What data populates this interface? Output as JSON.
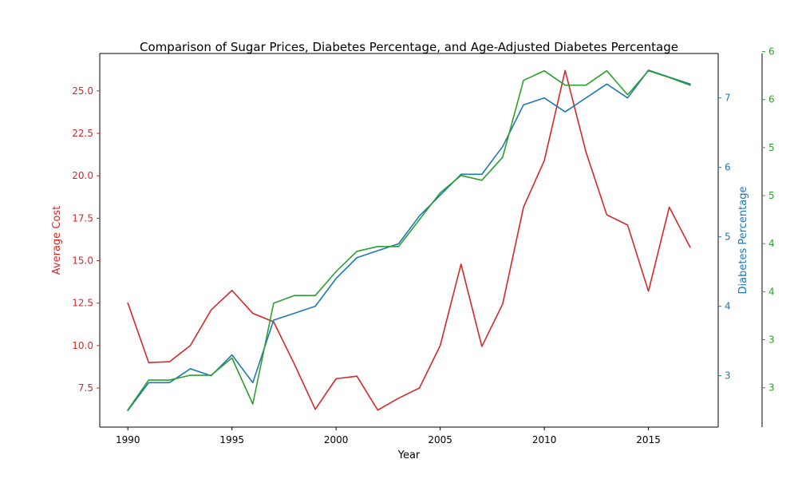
{
  "chart_data": {
    "type": "line",
    "title": "Comparison of Sugar Prices, Diabetes Percentage, and Age-Adjusted Diabetes Percentage",
    "xlabel": "Year",
    "ylabel": "Average Cost",
    "ylabel_right": "Diabetes Percentage",
    "ylabel_right2": "",
    "x": [
      1990,
      1991,
      1992,
      1993,
      1994,
      1995,
      1996,
      1997,
      1998,
      1999,
      2000,
      2001,
      2002,
      2003,
      2004,
      2005,
      2006,
      2007,
      2008,
      2009,
      2010,
      2011,
      2012,
      2013,
      2014,
      2015,
      2016,
      2017
    ],
    "xlim": [
      1988.65,
      2018.35
    ],
    "x_ticks": [
      1990,
      1995,
      2000,
      2005,
      2010,
      2015
    ],
    "x_tick_labels": [
      "1990",
      "1995",
      "2000",
      "2005",
      "2010",
      "2015"
    ],
    "grid": false,
    "legend": "none",
    "axes": [
      {
        "id": "left",
        "color": "#d62728",
        "ylim": [
          5.2,
          27.2
        ],
        "ticks": [
          7.5,
          10.0,
          12.5,
          15.0,
          17.5,
          20.0,
          22.5,
          25.0
        ],
        "tick_labels": [
          "7.5",
          "10.0",
          "12.5",
          "15.0",
          "17.5",
          "20.0",
          "22.5",
          "25.0"
        ]
      },
      {
        "id": "right",
        "color": "#1f77b4",
        "ylim": [
          2.26,
          7.64
        ],
        "ticks": [
          3,
          4,
          5,
          6,
          7
        ],
        "tick_labels": [
          "3",
          "4",
          "5",
          "6",
          "7"
        ]
      },
      {
        "id": "right2",
        "color": "#2ca02c",
        "ylim": [
          2.59,
          6.48
        ],
        "ticks": [
          3.0,
          3.5,
          4.0,
          4.5,
          5.0,
          5.5,
          6.0,
          6.5
        ],
        "tick_labels": [
          "3",
          "3",
          "4",
          "4",
          "5",
          "5",
          "6",
          "6"
        ]
      }
    ],
    "series": [
      {
        "axis": "left",
        "color": "#d62728",
        "values": [
          12.5,
          9.0,
          9.05,
          10.0,
          12.1,
          13.25,
          11.9,
          11.4,
          8.9,
          6.25,
          8.05,
          8.2,
          6.2,
          6.9,
          7.5,
          10.0,
          14.8,
          9.95,
          12.45,
          18.15,
          20.9,
          26.2,
          21.4,
          17.7,
          17.1,
          13.2,
          18.15,
          15.8
        ]
      },
      {
        "axis": "right",
        "color": "#1f77b4",
        "values": [
          2.5,
          2.9,
          2.9,
          3.1,
          3.0,
          3.3,
          2.9,
          3.8,
          3.9,
          4.0,
          4.4,
          4.7,
          4.8,
          4.9,
          5.3,
          5.6,
          5.9,
          5.9,
          6.3,
          6.9,
          7.0,
          6.8,
          7.0,
          7.2,
          7.0,
          7.4,
          7.3,
          7.2
        ]
      },
      {
        "axis": "right2",
        "color": "#2ca02c",
        "values": [
          2.77,
          3.08,
          3.08,
          3.13,
          3.13,
          3.31,
          2.83,
          3.88,
          3.96,
          3.96,
          4.21,
          4.42,
          4.47,
          4.47,
          4.75,
          5.03,
          5.21,
          5.16,
          5.4,
          6.2,
          6.3,
          6.15,
          6.15,
          6.3,
          6.05,
          6.3,
          6.23,
          6.15
        ]
      }
    ]
  }
}
